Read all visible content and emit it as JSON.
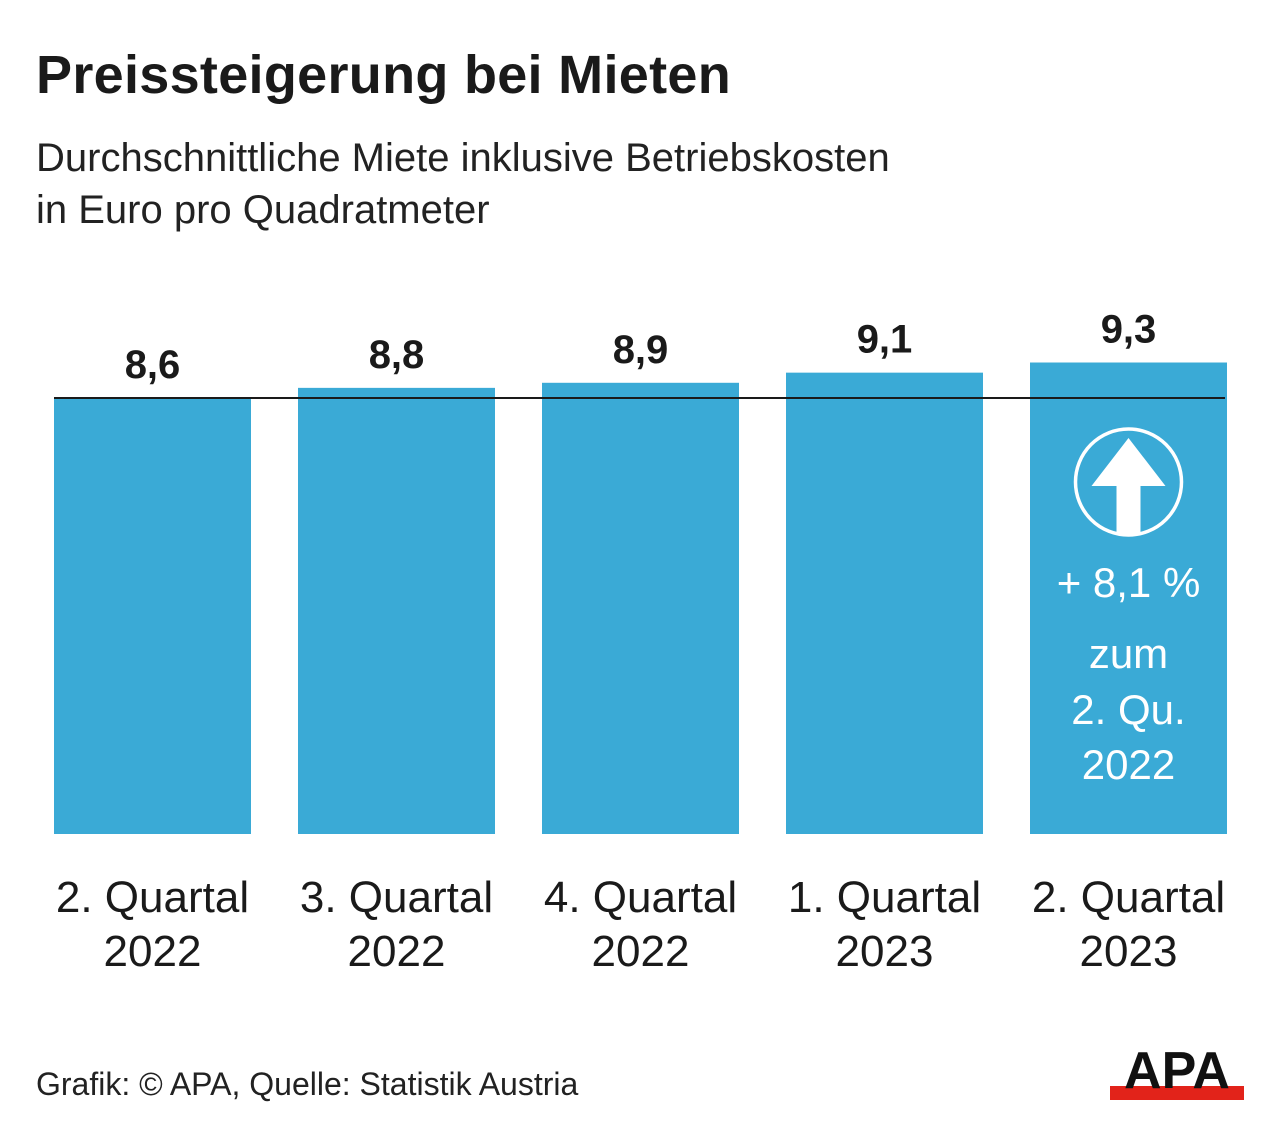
{
  "title": "Preissteigerung bei Mieten",
  "subtitle_line1": "Durchschnittliche Miete inklusive Betriebskosten",
  "subtitle_line2": "in Euro pro Quadratmeter",
  "source": "Grafik: © APA, Quelle: Statistik Austria",
  "logo_text": "APA",
  "colors": {
    "bar": "#3aaad6",
    "reference_line": "#1a1a1a",
    "logo_red": "#e2231a"
  },
  "chart_data": {
    "type": "bar",
    "categories": [
      [
        "2. Quartal",
        "2022"
      ],
      [
        "3. Quartal",
        "2022"
      ],
      [
        "4. Quartal",
        "2022"
      ],
      [
        "1. Quartal",
        "2023"
      ],
      [
        "2. Quartal",
        "2023"
      ]
    ],
    "values": [
      8.6,
      8.8,
      8.9,
      9.1,
      9.3
    ],
    "data_labels": [
      "8,6",
      "8,8",
      "8,9",
      "9,1",
      "9,3"
    ],
    "ylim": [
      0,
      9.3
    ],
    "reference_line": 8.6,
    "grid": false,
    "annotation": {
      "icon": "arrow-up-circle-icon",
      "lines": [
        "+ 8,1 %",
        "zum",
        "2. Qu.",
        "2022"
      ]
    }
  }
}
